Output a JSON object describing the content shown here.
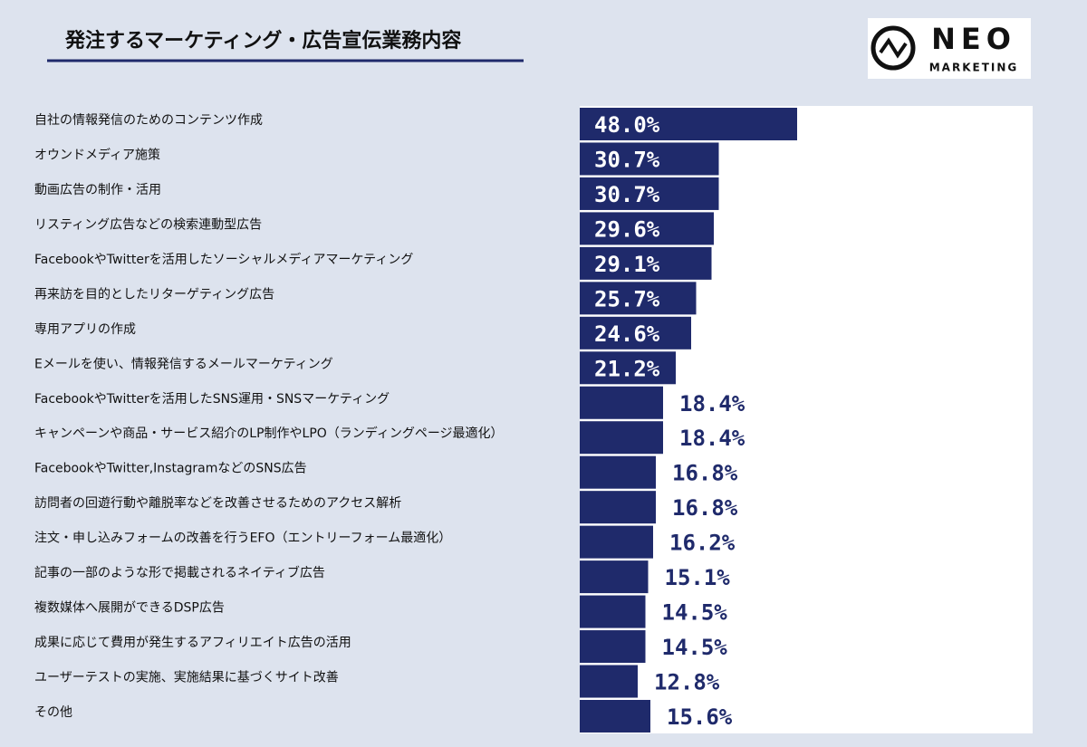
{
  "chart_data": {
    "type": "barh",
    "title": "発注するマーケティング・広告宣伝業務内容",
    "categories": [
      "自社の情報発信のためのコンテンツ作成",
      "オウンドメディア施策",
      "動画広告の制作・活用",
      "リスティング広告などの検索連動型広告",
      "FacebookやTwitterを活用したソーシャルメディアマーケティング",
      "再来訪を目的としたリターゲティング広告",
      "専用アプリの作成",
      "Eメールを使い、情報発信するメールマーケティング",
      "FacebookやTwitterを活用したSNS運用・SNSマーケティング",
      "キャンペーンや商品・サービス紹介のLP制作やLPO（ランディングページ最適化）",
      "FacebookやTwitter,InstagramなどのSNS広告",
      "訪問者の回遊行動や離脱率などを改善させるためのアクセス解析",
      "注文・申し込みフォームの改善を行うEFO（エントリーフォーム最適化）",
      "記事の一部のような形で掲載されるネイティブ広告",
      "複数媒体へ展開ができるDSP広告",
      "成果に応じて費用が発生するアフィリエイト広告の活用",
      "ユーザーテストの実施、実施結果に基づくサイト改善",
      "その他"
    ],
    "values": [
      48.0,
      30.7,
      30.7,
      29.6,
      29.1,
      25.7,
      24.6,
      21.2,
      18.4,
      18.4,
      16.8,
      16.8,
      16.2,
      15.1,
      14.5,
      14.5,
      12.8,
      15.6
    ],
    "value_labels": [
      "48.0%",
      "30.7%",
      "30.7%",
      "29.6%",
      "29.1%",
      "25.7%",
      "24.6%",
      "21.2%",
      "18.4%",
      "18.4%",
      "16.8%",
      "16.8%",
      "16.2%",
      "15.1%",
      "14.5%",
      "14.5%",
      "12.8%",
      "15.6%"
    ],
    "color": "#1f2a6b",
    "xlim": [
      0,
      100
    ]
  },
  "logo": {
    "name": "NEO",
    "tagline": "MARKETING"
  }
}
